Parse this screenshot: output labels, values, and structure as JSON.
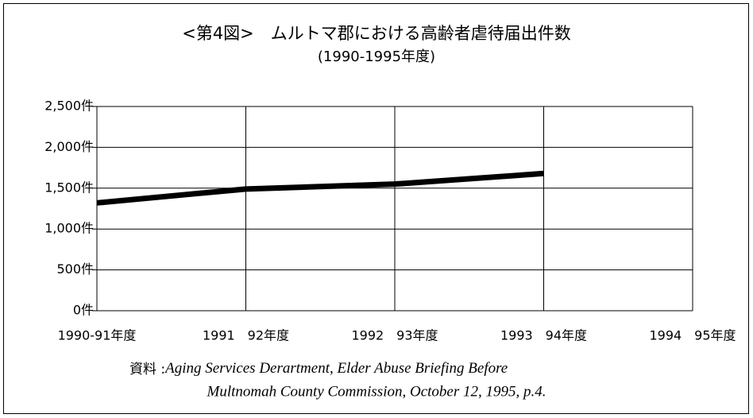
{
  "chart_data": {
    "type": "line",
    "title": "<第4図>　ムルトマ郡における高齢者虐待届出件数",
    "subtitle": "(1990-1995年度)",
    "categories": [
      "1990-91年度",
      "1991　92年度",
      "1992　93年度",
      "1993　94年度",
      "1994　95年度"
    ],
    "series": [
      {
        "name": "高齢者虐待届出件数",
        "color": "#000000",
        "values": [
          1320,
          1490,
          1550,
          1680,
          null
        ]
      }
    ],
    "ylim": [
      0,
      2500
    ],
    "yticks": [
      {
        "value": 0,
        "label": "0件"
      },
      {
        "value": 500,
        "label": "500件"
      },
      {
        "value": 1000,
        "label": "1,000件"
      },
      {
        "value": 1500,
        "label": "1,500件"
      },
      {
        "value": 2000,
        "label": "2,000件"
      },
      {
        "value": 2500,
        "label": "2,500件"
      }
    ],
    "grid": true,
    "source_label": "資料 :",
    "source_lines": [
      "Aging Services Derartment, Elder Abuse Briefing Before",
      "Multnomah County Commission, October 12, 1995, p.4."
    ]
  }
}
